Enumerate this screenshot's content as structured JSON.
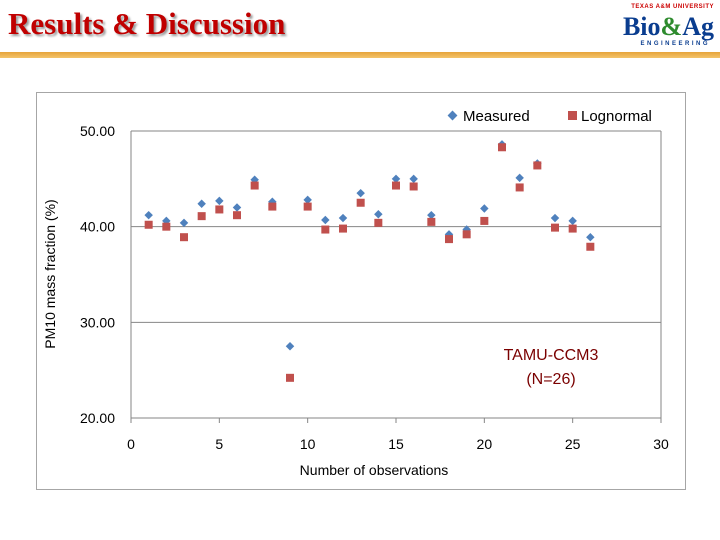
{
  "header": {
    "title": "Results & Discussion",
    "logo_top": "TEXAS A&M UNIVERSITY",
    "logo_main_a": "Bio",
    "logo_main_amp": "&",
    "logo_main_b": "Ag",
    "logo_sub": "ENGINEERING"
  },
  "chart_data": {
    "type": "scatter",
    "title": "",
    "xlabel": "Number of observations",
    "ylabel": "PM10 mass fraction (%)",
    "xlim": [
      0,
      30
    ],
    "ylim": [
      20,
      50
    ],
    "x_ticks": [
      "0",
      "5",
      "10",
      "15",
      "20",
      "25",
      "30"
    ],
    "y_ticks": [
      "20.00",
      "30.00",
      "40.00",
      "50.00"
    ],
    "x_tick_values": [
      0,
      5,
      10,
      15,
      20,
      25,
      30
    ],
    "y_tick_values": [
      20,
      30,
      40,
      50
    ],
    "grid": "horizontal",
    "legend_position": "top-right",
    "annotation_line1": "TAMU-CCM3",
    "annotation_line2": "(N=26)",
    "series": [
      {
        "name": "Measured",
        "marker": "diamond",
        "color": "#4f81bd",
        "x": [
          1,
          2,
          3,
          4,
          5,
          6,
          7,
          8,
          9,
          10,
          11,
          12,
          13,
          14,
          15,
          16,
          17,
          18,
          19,
          20,
          21,
          22,
          23,
          24,
          25,
          26
        ],
        "values": [
          41.2,
          40.6,
          40.4,
          42.4,
          42.7,
          42.0,
          44.9,
          42.6,
          27.5,
          42.8,
          40.7,
          40.9,
          43.5,
          41.3,
          45.0,
          45.0,
          41.2,
          39.2,
          39.7,
          41.9,
          48.6,
          45.1,
          46.6,
          40.9,
          40.6,
          38.9
        ]
      },
      {
        "name": "Lognormal",
        "marker": "square",
        "color": "#c0504d",
        "x": [
          1,
          2,
          3,
          4,
          5,
          6,
          7,
          8,
          9,
          10,
          11,
          12,
          13,
          14,
          15,
          16,
          17,
          18,
          19,
          20,
          21,
          22,
          23,
          24,
          25,
          26
        ],
        "values": [
          40.2,
          40.0,
          38.9,
          41.1,
          41.8,
          41.2,
          44.3,
          42.1,
          24.2,
          42.1,
          39.7,
          39.8,
          42.5,
          40.4,
          44.3,
          44.2,
          40.5,
          38.7,
          39.2,
          40.6,
          48.3,
          44.1,
          46.4,
          39.9,
          39.8,
          37.9
        ]
      }
    ]
  }
}
